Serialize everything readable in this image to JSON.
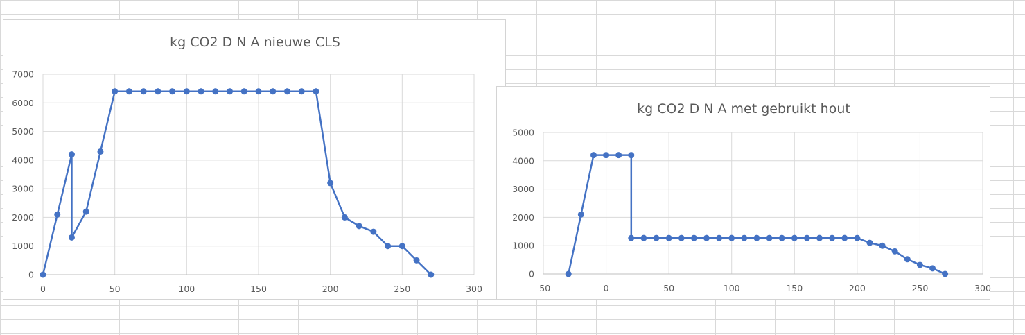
{
  "chart_data": [
    {
      "type": "scatter",
      "title": "kg CO2 D N A nieuwe CLS",
      "xlabel": "",
      "ylabel": "",
      "xlim": [
        0,
        300
      ],
      "ylim": [
        0,
        7000
      ],
      "xticks": [
        0,
        50,
        100,
        150,
        200,
        250,
        300
      ],
      "yticks": [
        0,
        1000,
        2000,
        3000,
        4000,
        5000,
        6000,
        7000
      ],
      "grid": true,
      "legend": "none",
      "line": true,
      "color": "#4472c4",
      "series": [
        {
          "x": [
            0,
            10,
            20,
            20,
            30,
            40,
            50,
            60,
            70,
            80,
            90,
            100,
            110,
            120,
            130,
            140,
            150,
            160,
            170,
            180,
            190,
            200,
            210,
            220,
            230,
            240,
            250,
            260,
            270
          ],
          "y": [
            0,
            2100,
            4200,
            1300,
            2200,
            4300,
            6400,
            6400,
            6400,
            6400,
            6400,
            6400,
            6400,
            6400,
            6400,
            6400,
            6400,
            6400,
            6400,
            6400,
            6400,
            3200,
            2000,
            1700,
            1500,
            1000,
            1000,
            500,
            0
          ]
        }
      ]
    },
    {
      "type": "scatter",
      "title": "kg CO2 D N A met gebruikt hout",
      "xlabel": "",
      "ylabel": "",
      "xlim": [
        -50,
        300
      ],
      "ylim": [
        0,
        5000
      ],
      "xticks": [
        -50,
        0,
        50,
        100,
        150,
        200,
        250,
        300
      ],
      "yticks": [
        0,
        1000,
        2000,
        3000,
        4000,
        5000
      ],
      "grid": true,
      "legend": "none",
      "line": true,
      "color": "#4472c4",
      "series": [
        {
          "x": [
            -30,
            -20,
            -10,
            0,
            10,
            20,
            20,
            30,
            40,
            50,
            60,
            70,
            80,
            90,
            100,
            110,
            120,
            130,
            140,
            150,
            160,
            170,
            180,
            190,
            200,
            210,
            220,
            230,
            240,
            250,
            260,
            270
          ],
          "y": [
            0,
            2100,
            4200,
            4200,
            4200,
            4200,
            1270,
            1270,
            1270,
            1270,
            1270,
            1270,
            1270,
            1270,
            1270,
            1270,
            1270,
            1270,
            1270,
            1270,
            1270,
            1270,
            1270,
            1270,
            1270,
            1100,
            1000,
            800,
            520,
            320,
            200,
            0
          ]
        }
      ]
    }
  ]
}
